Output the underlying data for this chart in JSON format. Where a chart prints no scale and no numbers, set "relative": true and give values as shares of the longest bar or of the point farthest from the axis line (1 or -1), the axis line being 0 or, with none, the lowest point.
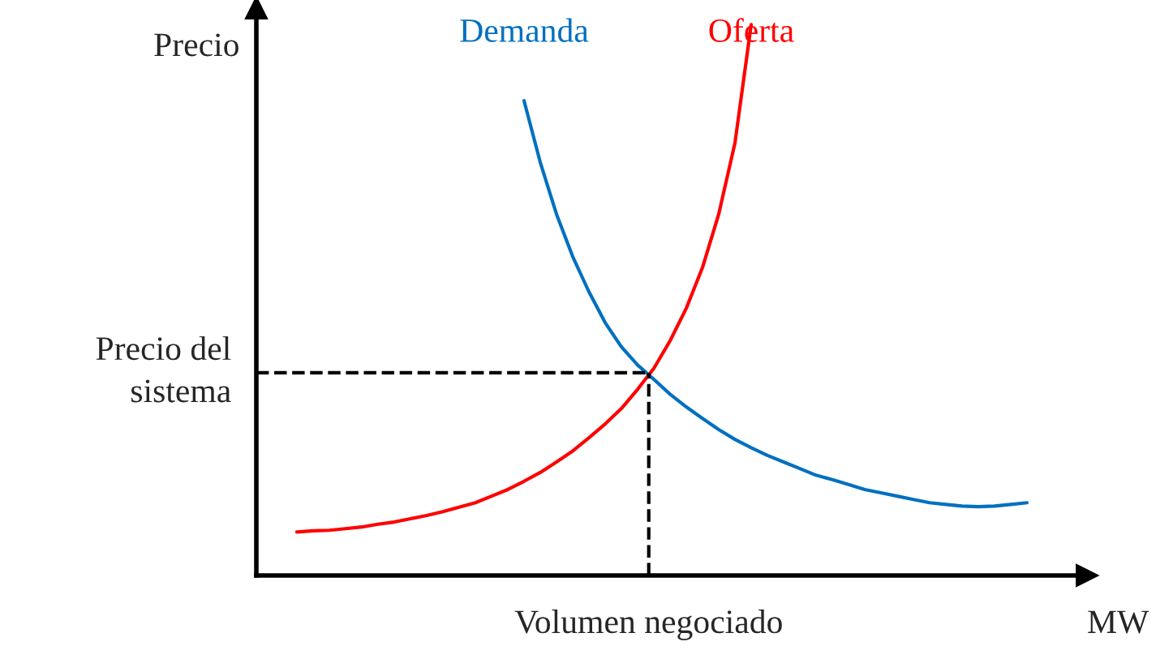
{
  "chart_data": {
    "type": "line",
    "relative": true,
    "ylabel": "Precio",
    "xlabel": "MW",
    "line_style": "solid",
    "marker": "none",
    "categories": [
      null,
      null,
      null,
      null,
      null,
      null,
      null,
      null,
      null,
      null,
      null,
      null,
      null,
      null,
      null,
      null,
      null,
      null,
      null,
      null,
      null,
      null,
      null,
      null,
      null,
      null,
      null,
      null,
      null,
      null,
      null,
      null,
      null,
      null,
      null,
      null,
      null,
      null,
      null,
      null,
      null,
      null,
      null,
      null,
      null,
      null
    ],
    "series": [
      {
        "name": "Demanda",
        "color": "#0070c0",
        "values": [
          null,
          null,
          null,
          null,
          null,
          null,
          null,
          null,
          null,
          null,
          null,
          null,
          null,
          null,
          0.862,
          0.75,
          0.656,
          0.579,
          0.515,
          0.459,
          0.415,
          0.382,
          0.356,
          0.329,
          0.306,
          0.285,
          0.265,
          0.247,
          0.232,
          0.218,
          0.206,
          0.194,
          0.182,
          0.174,
          0.165,
          0.156,
          0.15,
          0.144,
          0.138,
          0.132,
          0.129,
          0.126,
          0.125,
          0.126,
          0.129,
          0.132
        ]
      },
      {
        "name": "Oferta",
        "color": "#ff0000",
        "values": [
          0.079,
          0.081,
          0.082,
          0.085,
          0.088,
          0.093,
          0.097,
          0.103,
          0.109,
          0.116,
          0.124,
          0.132,
          0.144,
          0.156,
          0.171,
          0.187,
          0.206,
          0.226,
          0.25,
          0.275,
          0.303,
          0.338,
          0.376,
          0.426,
          0.485,
          0.559,
          0.656,
          0.785,
          1.0,
          null,
          null,
          null,
          null,
          null,
          null,
          null,
          null,
          null,
          null,
          null,
          null,
          null,
          null,
          null,
          null,
          null
        ]
      }
    ],
    "ref_lines": [
      {
        "axis": "y",
        "value": 0.368,
        "label": "Precio del\nsistema",
        "color": "#000000",
        "line_style": "dashed"
      }
    ],
    "annotations": [
      "Volumen negociado"
    ]
  }
}
